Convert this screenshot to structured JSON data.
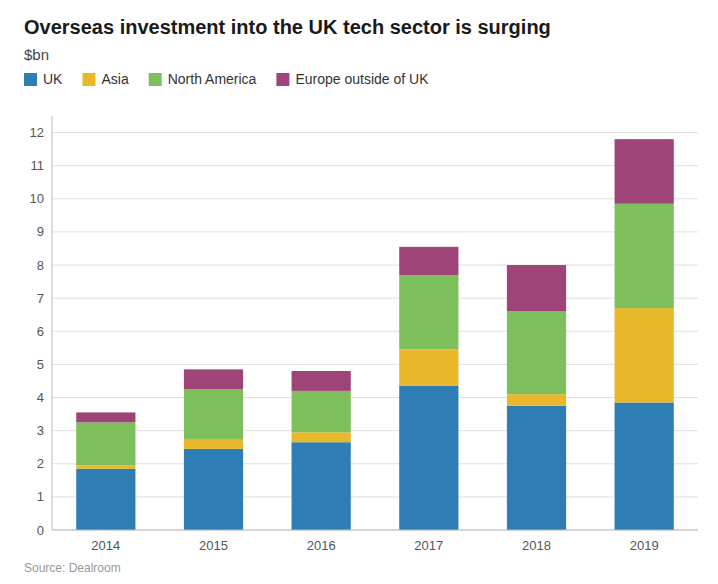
{
  "chart_data": {
    "type": "bar",
    "stacked": true,
    "title": "Overseas investment into the UK tech sector is surging",
    "subtitle": "$bn",
    "source": "Source: Dealroom",
    "categories": [
      "2014",
      "2015",
      "2016",
      "2017",
      "2018",
      "2019"
    ],
    "series": [
      {
        "name": "UK",
        "color": "#2e7db5",
        "values": [
          1.85,
          2.45,
          2.65,
          4.35,
          3.75,
          3.85
        ]
      },
      {
        "name": "Asia",
        "color": "#e8b82a",
        "values": [
          0.1,
          0.3,
          0.3,
          1.1,
          0.35,
          2.85
        ]
      },
      {
        "name": "North America",
        "color": "#7dbf5a",
        "values": [
          1.3,
          1.5,
          1.25,
          2.25,
          2.5,
          3.15
        ]
      },
      {
        "name": "Europe outside of UK",
        "color": "#9e4478",
        "values": [
          0.3,
          0.6,
          0.6,
          0.85,
          1.4,
          1.95
        ]
      }
    ],
    "ylim": [
      0,
      12.5
    ],
    "yticks": [
      0,
      1,
      2,
      3,
      4,
      5,
      6,
      7,
      8,
      9,
      10,
      11,
      12
    ],
    "grid": true,
    "legend": "top"
  }
}
